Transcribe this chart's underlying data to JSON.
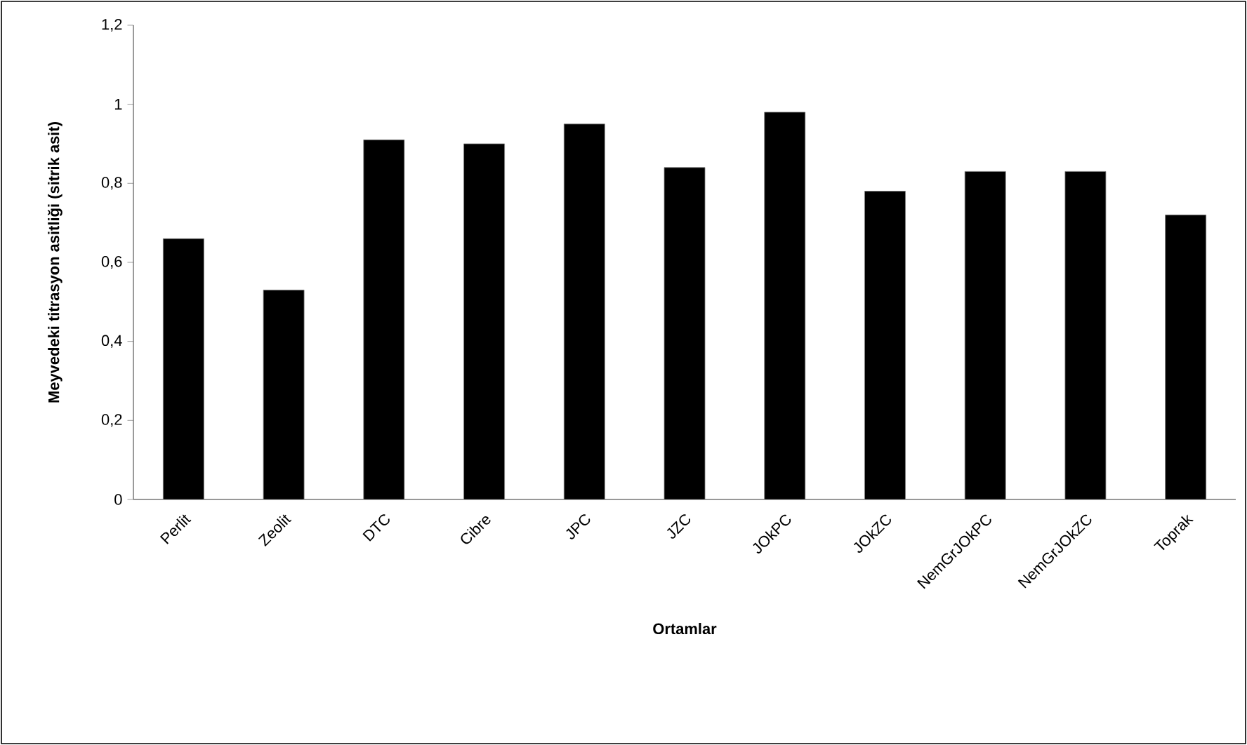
{
  "chart_data": {
    "type": "bar",
    "xlabel": "Ortamlar",
    "ylabel": "Meyvedeki titrasyon asitliği (sitrik asit)",
    "categories": [
      "Perlit",
      "Zeolit",
      "DTC",
      "Cibre",
      "JPC",
      "JZC",
      "JOkPC",
      "JOkZC",
      "NemGrJOkPC",
      "NemGrJOkZC",
      "Toprak"
    ],
    "values": [
      0.66,
      0.53,
      0.91,
      0.9,
      0.95,
      0.84,
      0.98,
      0.78,
      0.83,
      0.83,
      0.72
    ],
    "color": "#000000",
    "ylim": [
      0,
      1.2
    ],
    "yticks": [
      0,
      {
        "value": 0.2,
        "label": "0,2"
      },
      {
        "value": 0.4,
        "label": "0,4"
      },
      {
        "value": 0.6,
        "label": "0,6"
      },
      {
        "value": 0.8,
        "label": "0,8"
      },
      1,
      {
        "value": 1.2,
        "label": "1,2"
      }
    ],
    "grid": false
  }
}
